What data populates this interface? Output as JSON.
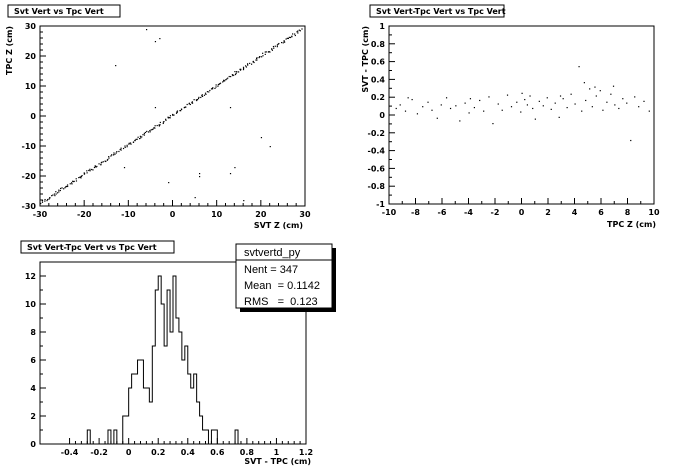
{
  "chart_data": [
    {
      "type": "scatter",
      "title": "Svt Vert vs Tpc Vert",
      "xlabel": "SVT Z (cm)",
      "ylabel": "TPC Z (cm)",
      "xlim": [
        -30,
        30
      ],
      "ylim": [
        -30,
        30
      ],
      "x_ticks": [
        "-30",
        "-20",
        "-10",
        "0",
        "10",
        "20",
        "30"
      ],
      "y_ticks": [
        "-30",
        "-20",
        "-10",
        "0",
        "10",
        "20",
        "30"
      ],
      "trend": {
        "from": [
          -30,
          -29
        ],
        "to": [
          29,
          29
        ]
      },
      "outliers": [
        [
          -4,
          25
        ],
        [
          -13,
          17
        ],
        [
          -3,
          26
        ],
        [
          -4,
          3
        ],
        [
          6,
          -19
        ],
        [
          -11,
          -17
        ],
        [
          5,
          -27
        ],
        [
          6,
          -20
        ],
        [
          13,
          -19
        ],
        [
          20,
          -7
        ],
        [
          14,
          -17
        ],
        [
          16,
          -28
        ],
        [
          22,
          -10
        ],
        [
          13,
          3
        ],
        [
          -6,
          29
        ],
        [
          14,
          15
        ],
        [
          -1,
          -22
        ]
      ]
    },
    {
      "type": "scatter",
      "title": "Svt Vert-Tpc Vert vs Tpc Vert",
      "xlabel": "TPC Z (cm)",
      "ylabel": "SVT - TPC (cm)",
      "xlim": [
        -10,
        10
      ],
      "ylim": [
        -1,
        1
      ],
      "x_ticks": [
        "-10",
        "-8",
        "-6",
        "-4",
        "-2",
        "0",
        "2",
        "4",
        "6",
        "8",
        "10"
      ],
      "y_ticks": [
        "-1",
        "-0.8",
        "-0.6",
        "-0.4",
        "-0.2",
        "0",
        "0.2",
        "0.4",
        "0.6",
        "0.8",
        "1"
      ],
      "points": [
        [
          -9.5,
          0.08
        ],
        [
          -9.2,
          0.12
        ],
        [
          -8.8,
          0.05
        ],
        [
          -8.3,
          0.18
        ],
        [
          -7.9,
          0.02
        ],
        [
          -7.5,
          0.1
        ],
        [
          -7.1,
          0.15
        ],
        [
          -6.8,
          0.06
        ],
        [
          -6.4,
          -0.03
        ],
        [
          -6.1,
          0.12
        ],
        [
          -5.7,
          0.2
        ],
        [
          -5.4,
          0.08
        ],
        [
          -5.0,
          0.11
        ],
        [
          -4.7,
          -0.06
        ],
        [
          -4.3,
          0.14
        ],
        [
          -4.0,
          0.03
        ],
        [
          -3.6,
          0.09
        ],
        [
          -3.2,
          0.17
        ],
        [
          -2.9,
          0.05
        ],
        [
          -2.5,
          0.21
        ],
        [
          -2.2,
          -0.09
        ],
        [
          -1.8,
          0.13
        ],
        [
          -1.5,
          0.06
        ],
        [
          -1.1,
          0.23
        ],
        [
          -0.8,
          0.1
        ],
        [
          -0.4,
          0.15
        ],
        [
          -0.1,
          0.04
        ],
        [
          0.2,
          0.18
        ],
        [
          0.4,
          0.12
        ],
        [
          0.6,
          0.22
        ],
        [
          0.8,
          0.08
        ],
        [
          1.0,
          -0.04
        ],
        [
          1.3,
          0.16
        ],
        [
          1.6,
          0.11
        ],
        [
          1.9,
          0.2
        ],
        [
          2.2,
          0.07
        ],
        [
          2.5,
          0.14
        ],
        [
          2.8,
          -0.02
        ],
        [
          3.1,
          0.19
        ],
        [
          3.4,
          0.09
        ],
        [
          3.7,
          0.24
        ],
        [
          4.0,
          0.13
        ],
        [
          4.3,
          0.55
        ],
        [
          4.5,
          0.05
        ],
        [
          4.8,
          0.17
        ],
        [
          5.1,
          0.3
        ],
        [
          5.3,
          0.1
        ],
        [
          5.6,
          0.22
        ],
        [
          5.9,
          0.28
        ],
        [
          6.1,
          0.06
        ],
        [
          6.4,
          0.15
        ],
        [
          6.7,
          0.24
        ],
        [
          7.0,
          0.12
        ],
        [
          7.3,
          0.08
        ],
        [
          7.6,
          0.19
        ],
        [
          7.9,
          0.14
        ],
        [
          8.2,
          -0.28
        ],
        [
          8.5,
          0.21
        ],
        [
          8.8,
          0.1
        ],
        [
          9.2,
          0.16
        ],
        [
          9.6,
          0.05
        ],
        [
          -8.6,
          0.2
        ],
        [
          -3.9,
          0.19
        ],
        [
          0.0,
          0.25
        ],
        [
          2.9,
          0.22
        ],
        [
          6.9,
          0.33
        ],
        [
          4.7,
          0.37
        ],
        [
          5.5,
          0.32
        ]
      ]
    },
    {
      "type": "histogram",
      "title": "Svt Vert-Tpc Vert vs Tpc Vert",
      "xlabel": "SVT - TPC (cm)",
      "xlim": [
        -0.6,
        1.2
      ],
      "ylim": [
        0,
        13
      ],
      "x_ticks": [
        "-0.4",
        "-0.2",
        "0",
        "0.2",
        "0.4",
        "0.6",
        "0.8",
        "1",
        "1.2"
      ],
      "y_ticks": [
        "0",
        "2",
        "4",
        "6",
        "8",
        "10",
        "12"
      ],
      "bin_start": -0.3,
      "bin_width": 0.02,
      "counts": [
        0,
        1,
        0,
        0,
        0,
        0,
        0,
        0,
        1,
        0,
        1,
        0,
        0,
        2,
        2,
        4,
        5,
        5,
        6,
        6,
        4,
        4,
        3,
        7,
        11,
        12,
        10,
        7,
        11,
        8,
        12,
        9,
        8,
        6,
        7,
        5,
        4,
        5,
        3,
        2,
        1,
        1,
        0,
        1,
        1,
        0,
        0,
        0,
        0,
        0,
        0,
        1
      ],
      "stats": {
        "name": "svtvertd_py",
        "entries_label": "Nent = 347",
        "mean_label": "Mean  = 0.1142",
        "rms_label": "RMS   =  0.123"
      }
    }
  ]
}
